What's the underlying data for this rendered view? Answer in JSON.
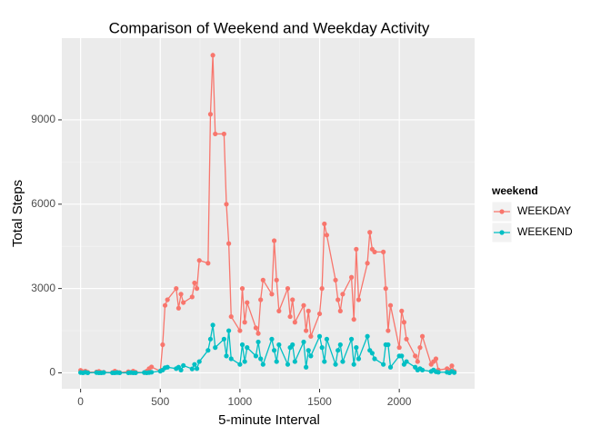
{
  "chart_data": {
    "type": "line",
    "title": "Comparison of Weekend and Weekday Activity",
    "x_label": "5-minute Interval",
    "y_label": "Total Steps",
    "legend_title": "weekend",
    "legend": "right",
    "grid": true,
    "xlim": [
      -117.75,
      2472.75
    ],
    "ylim": [
      -567,
      11907
    ],
    "xticks": [
      0,
      500,
      1000,
      1500,
      2000
    ],
    "yticks": [
      0,
      3000,
      6000,
      9000
    ],
    "x": [
      0,
      15,
      30,
      45,
      100,
      115,
      130,
      145,
      200,
      215,
      230,
      245,
      300,
      315,
      330,
      345,
      400,
      415,
      430,
      445,
      500,
      515,
      530,
      545,
      600,
      615,
      630,
      645,
      700,
      715,
      730,
      745,
      800,
      815,
      830,
      845,
      900,
      915,
      930,
      945,
      1000,
      1015,
      1030,
      1045,
      1100,
      1115,
      1130,
      1145,
      1200,
      1215,
      1230,
      1245,
      1300,
      1315,
      1330,
      1345,
      1400,
      1415,
      1430,
      1445,
      1500,
      1515,
      1530,
      1545,
      1600,
      1615,
      1630,
      1645,
      1700,
      1715,
      1730,
      1745,
      1800,
      1815,
      1830,
      1845,
      1900,
      1915,
      1930,
      1945,
      2000,
      2015,
      2030,
      2045,
      2100,
      2115,
      2130,
      2145,
      2200,
      2215,
      2230,
      2245,
      2300,
      2315,
      2330,
      2345
    ],
    "series": [
      {
        "name": "WEEKDAY",
        "color": "#F8766D",
        "values": [
          90,
          40,
          60,
          20,
          30,
          50,
          10,
          20,
          10,
          60,
          20,
          10,
          40,
          10,
          60,
          20,
          10,
          60,
          150,
          210,
          60,
          1000,
          2400,
          2600,
          3000,
          2300,
          2800,
          2500,
          2700,
          3200,
          3000,
          4000,
          3900,
          9200,
          11300,
          8500,
          8500,
          6000,
          4600,
          2000,
          1500,
          3000,
          1800,
          2500,
          1600,
          1400,
          2600,
          3300,
          2800,
          4700,
          3300,
          2200,
          3000,
          2000,
          2600,
          1800,
          2400,
          1500,
          2200,
          1300,
          2100,
          3000,
          5300,
          4900,
          3300,
          2600,
          2200,
          2800,
          3400,
          1900,
          4400,
          2600,
          3900,
          5000,
          4400,
          4300,
          4300,
          3000,
          1500,
          2400,
          900,
          2200,
          1800,
          1200,
          600,
          400,
          900,
          1300,
          300,
          400,
          500,
          100,
          150,
          100,
          250,
          50
        ]
      },
      {
        "name": "WEEKEND",
        "color": "#00BFC4",
        "values": [
          10,
          0,
          20,
          0,
          10,
          0,
          0,
          10,
          0,
          0,
          10,
          0,
          0,
          10,
          0,
          0,
          10,
          0,
          10,
          20,
          60,
          100,
          180,
          200,
          150,
          200,
          100,
          260,
          140,
          300,
          150,
          400,
          800,
          1200,
          1700,
          900,
          1200,
          600,
          1500,
          500,
          300,
          1000,
          400,
          900,
          600,
          1100,
          500,
          300,
          1200,
          800,
          400,
          1000,
          300,
          900,
          1000,
          400,
          1100,
          200,
          800,
          600,
          1300,
          900,
          400,
          1200,
          300,
          800,
          1000,
          400,
          1200,
          300,
          900,
          500,
          1300,
          800,
          700,
          500,
          300,
          1000,
          1000,
          200,
          600,
          600,
          300,
          400,
          200,
          100,
          150,
          100,
          50,
          100,
          40,
          20,
          20,
          0,
          50,
          10
        ]
      }
    ]
  }
}
